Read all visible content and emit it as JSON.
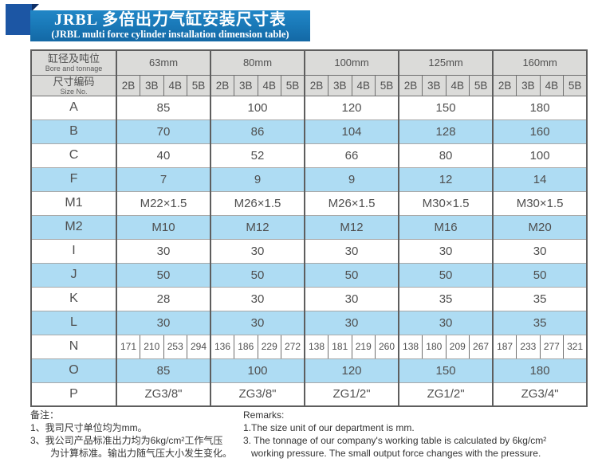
{
  "title": {
    "zh": "JRBL 多倍出力气缸安装尺寸表",
    "en": "(JRBL multi force cylinder installation dimension table)"
  },
  "table": {
    "header": {
      "bore_label_zh": "缸径及吨位",
      "bore_label_en": "Bore and tonnage",
      "size_label_zh": "尺寸编码",
      "size_label_en": "Size No.",
      "bores": [
        "63mm",
        "80mm",
        "100mm",
        "125mm",
        "160mm"
      ],
      "size_codes": [
        "2B",
        "3B",
        "4B",
        "5B"
      ]
    },
    "rows": [
      {
        "label": "A",
        "type": "merged",
        "blue": false,
        "values": [
          "85",
          "100",
          "120",
          "150",
          "180"
        ]
      },
      {
        "label": "B",
        "type": "merged",
        "blue": true,
        "values": [
          "70",
          "86",
          "104",
          "128",
          "160"
        ]
      },
      {
        "label": "C",
        "type": "merged",
        "blue": false,
        "values": [
          "40",
          "52",
          "66",
          "80",
          "100"
        ]
      },
      {
        "label": "F",
        "type": "merged",
        "blue": true,
        "values": [
          "7",
          "9",
          "9",
          "12",
          "14"
        ]
      },
      {
        "label": "M1",
        "type": "merged",
        "blue": false,
        "values": [
          "M22×1.5",
          "M26×1.5",
          "M26×1.5",
          "M30×1.5",
          "M30×1.5"
        ]
      },
      {
        "label": "M2",
        "type": "merged",
        "blue": true,
        "values": [
          "M10",
          "M12",
          "M12",
          "M16",
          "M20"
        ]
      },
      {
        "label": "I",
        "type": "merged",
        "blue": false,
        "values": [
          "30",
          "30",
          "30",
          "30",
          "30"
        ]
      },
      {
        "label": "J",
        "type": "merged",
        "blue": true,
        "values": [
          "50",
          "50",
          "50",
          "50",
          "50"
        ]
      },
      {
        "label": "K",
        "type": "merged",
        "blue": false,
        "values": [
          "28",
          "30",
          "30",
          "35",
          "35"
        ]
      },
      {
        "label": "L",
        "type": "merged",
        "blue": true,
        "values": [
          "30",
          "30",
          "30",
          "30",
          "35"
        ]
      },
      {
        "label": "N",
        "type": "per-code",
        "blue": false,
        "values": [
          "171",
          "210",
          "253",
          "294",
          "136",
          "186",
          "229",
          "272",
          "138",
          "181",
          "219",
          "260",
          "138",
          "180",
          "209",
          "267",
          "187",
          "233",
          "277",
          "321"
        ]
      },
      {
        "label": "O",
        "type": "merged",
        "blue": true,
        "values": [
          "85",
          "100",
          "120",
          "150",
          "180"
        ]
      },
      {
        "label": "P",
        "type": "merged",
        "blue": false,
        "values": [
          "ZG3/8\"",
          "ZG3/8\"",
          "ZG1/2\"",
          "ZG1/2\"",
          "ZG3/4\""
        ]
      }
    ]
  },
  "notes": {
    "zh": {
      "heading": "备注：",
      "lines": [
        "1、我司尺寸单位均为mm。",
        "3、我公司产品标准出力均为6kg/cm²工作气压",
        "为计算标准。输出力随气压大小发生变化。"
      ]
    },
    "en": {
      "heading": "Remarks:",
      "lines": [
        "1.The size unit of our department is mm.",
        "3. The tonnage of our company's working table is calculated by 6kg/cm²",
        "working pressure. The small output force changes with the pressure."
      ]
    }
  },
  "colors": {
    "banner_blue": "#1a7ab9",
    "square_blue": "#1c56a4",
    "fold_navy": "#0e2f66",
    "header_gray": "#dbdbd9",
    "row_blue": "#aedcf3",
    "border_dark": "#5e5e5e",
    "cell_text": "#4f4f4f"
  }
}
